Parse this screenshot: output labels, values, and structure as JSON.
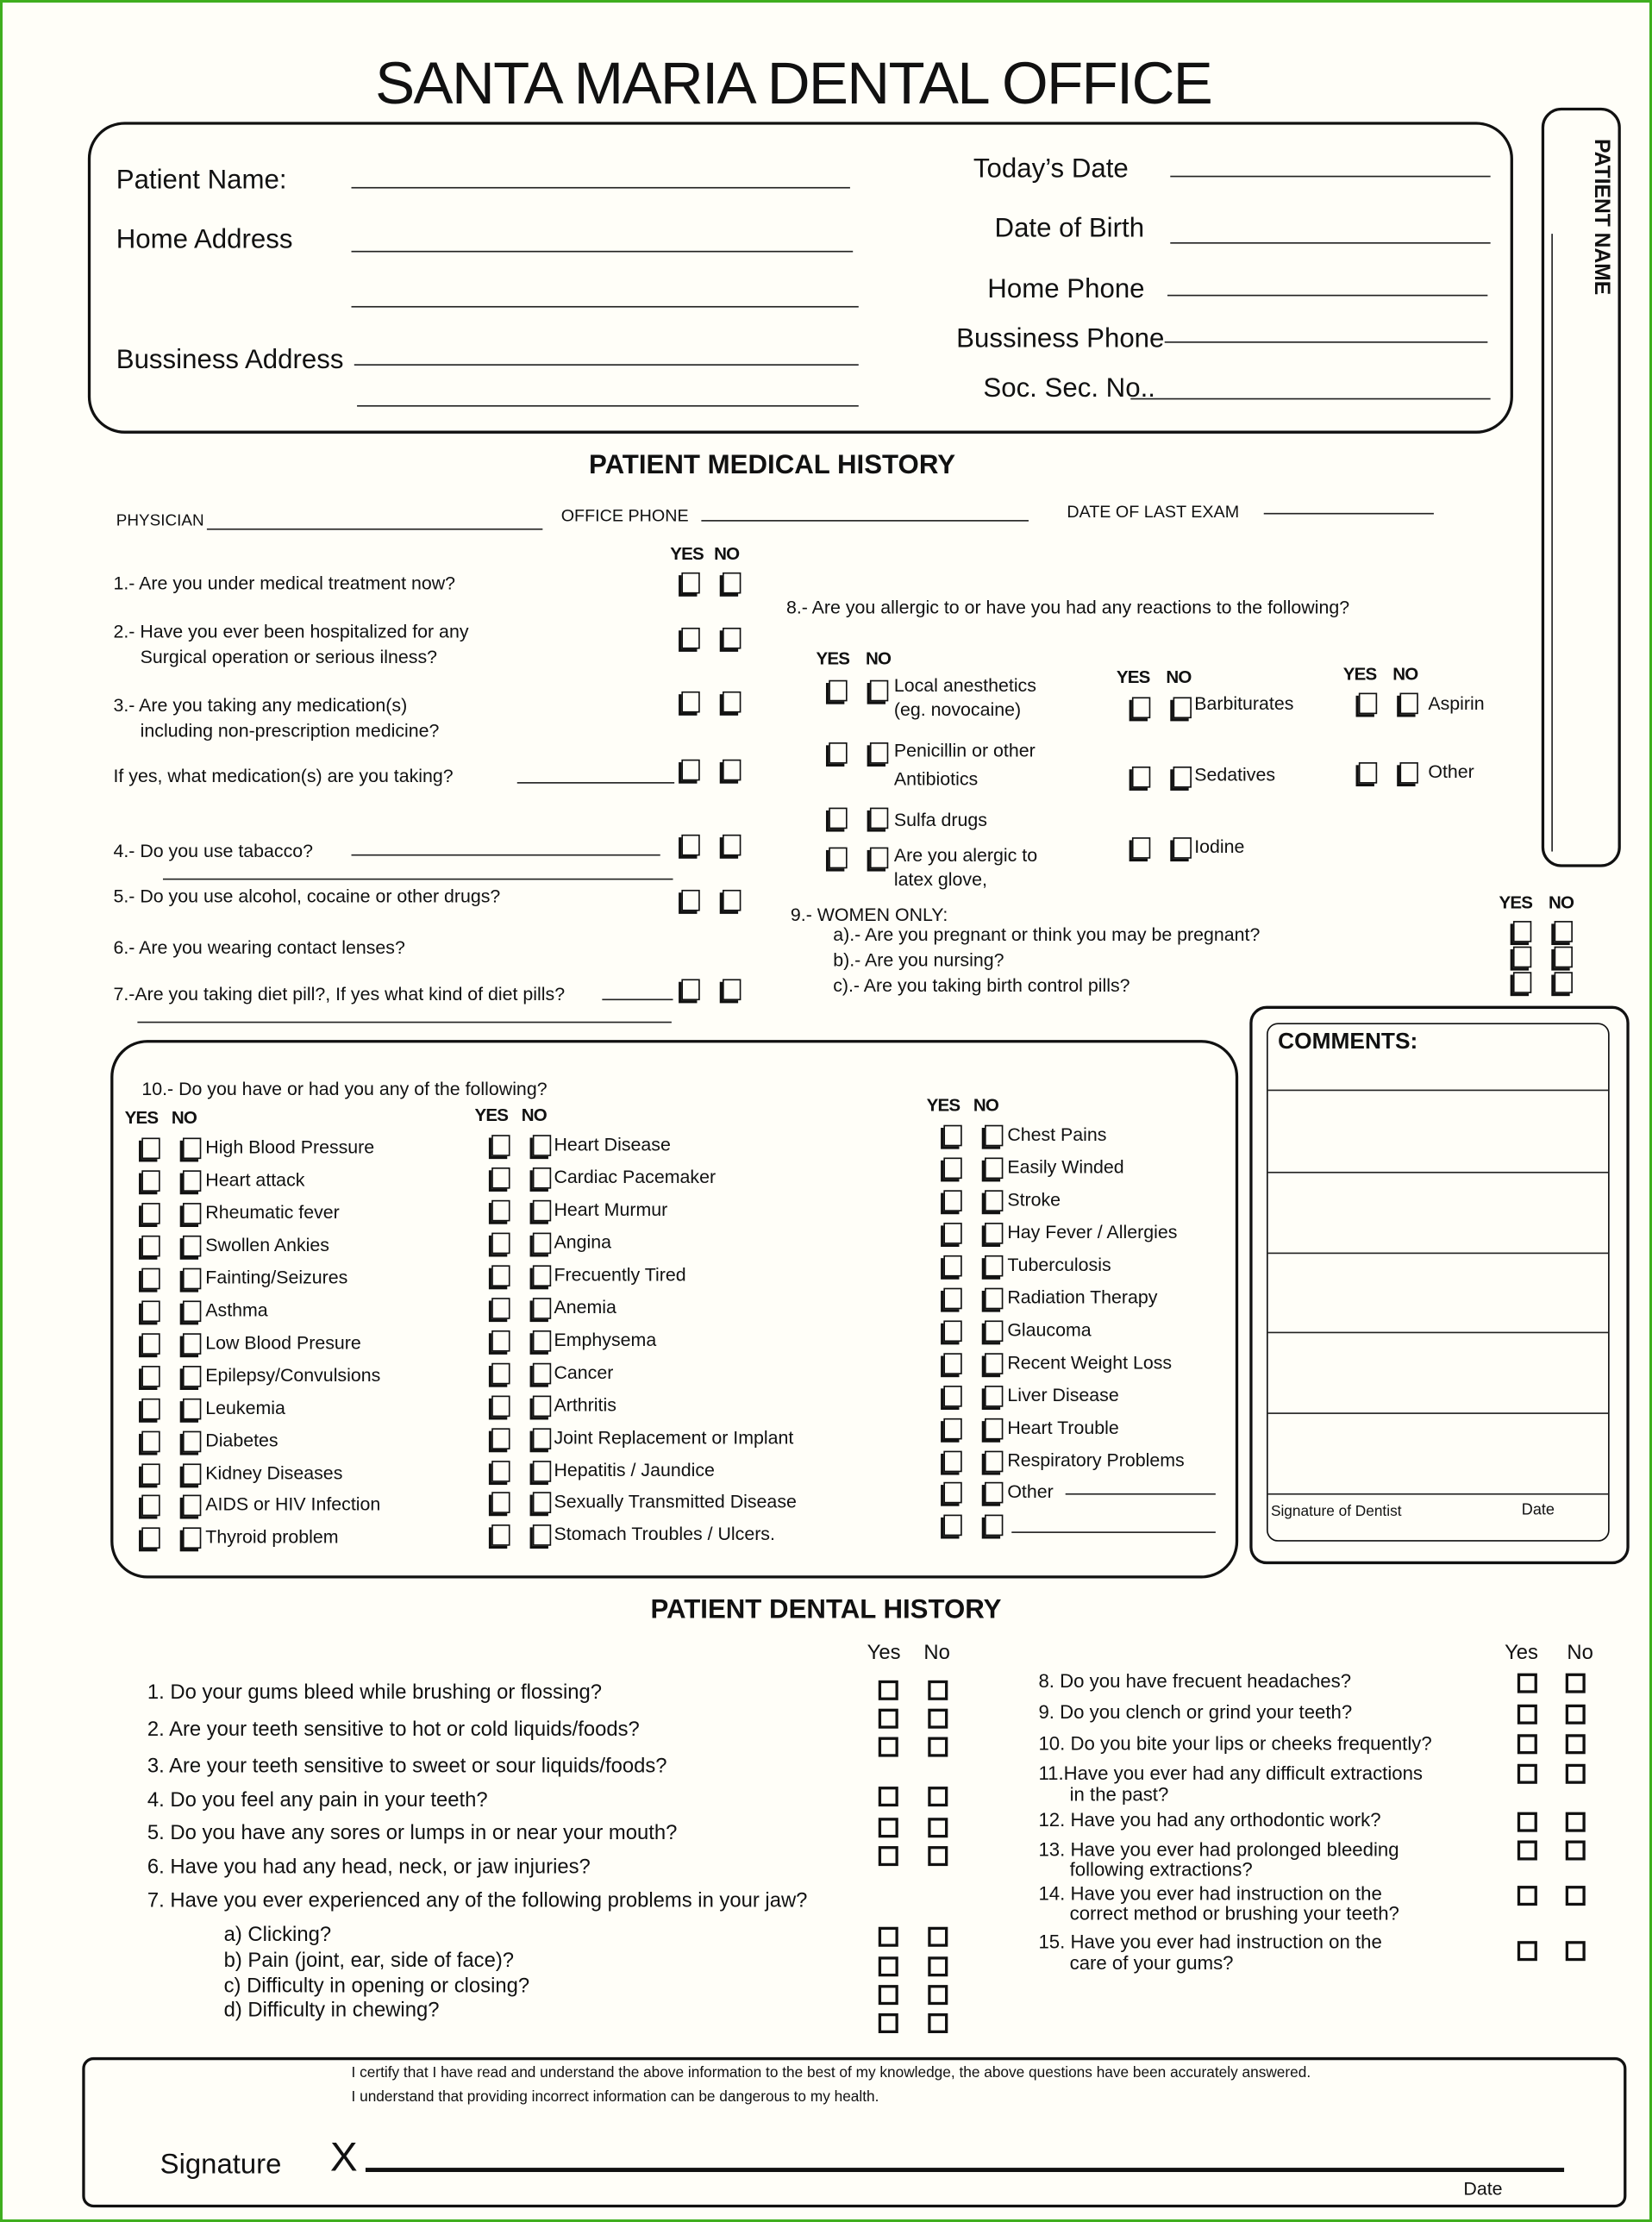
{
  "title": "SANTA MARIA DENTAL OFFICE",
  "patient_info": {
    "patient_name": "Patient Name:",
    "home_address": "Home Address",
    "business_address": "Bussiness Address",
    "todays_date": "Today’s  Date",
    "date_of_birth": "Date of Birth",
    "home_phone": "Home Phone",
    "business_phone": "Bussiness Phone",
    "soc_sec_no": "Soc. Sec. No.."
  },
  "side_tab": {
    "label": "PATIENT NAME"
  },
  "medical_history": {
    "title": "PATIENT MEDICAL HISTORY",
    "physician": "PHYSICIAN",
    "office_phone": "OFFICE PHONE",
    "last_exam": "DATE OF  LAST EXAM",
    "yes": "YES",
    "no": "NO",
    "questions": [
      {
        "lines": [
          "1.- Are you under medical treatment now?"
        ]
      },
      {
        "lines": [
          "2.- Have you ever been hospitalized for any",
          "Surgical operation or serious ilness?"
        ]
      },
      {
        "lines": [
          "3.- Are you taking any medication(s)",
          "including non-prescription medicine?"
        ]
      },
      {
        "lines": [
          "If yes, what medication(s) are you taking?"
        ]
      },
      {
        "lines": [
          "4.- Do you use tabacco?"
        ]
      },
      {
        "lines": [
          "5.- Do you use alcohol, cocaine or other drugs?"
        ]
      },
      {
        "lines": [
          "6.- Are you wearing contact lenses?"
        ]
      },
      {
        "lines": [
          "7.-Are you taking diet pill?, If yes what kind of diet pills?"
        ]
      }
    ],
    "allergies": {
      "question": "8.- Are you allergic to or have you had any reactions to the following?",
      "items": [
        {
          "lines": [
            "Local anesthetics",
            "(eg. novocaine)"
          ]
        },
        {
          "lines": [
            "Penicillin or other",
            "Antibiotics"
          ]
        },
        {
          "lines": [
            "Sulfa drugs"
          ]
        },
        {
          "lines": [
            "Are you alergic to",
            "latex glove,"
          ]
        },
        {
          "lines": [
            "Barbiturates"
          ]
        },
        {
          "lines": [
            "Sedatives"
          ]
        },
        {
          "lines": [
            "Iodine"
          ]
        },
        {
          "lines": [
            "Aspirin"
          ]
        },
        {
          "lines": [
            "Other"
          ]
        }
      ]
    },
    "women_only": {
      "title": "9.- WOMEN ONLY:",
      "items": [
        "a).- Are you pregnant or think you may be pregnant?",
        "b).- Are you nursing?",
        "c).- Are you taking birth control pills?"
      ]
    },
    "conditions": {
      "question": "10.- Do you have or had you any of the following?",
      "col1": [
        "High Blood Pressure",
        "Heart attack",
        "Rheumatic fever",
        "Swollen Ankies",
        "Fainting/Seizures",
        "Asthma",
        "Low Blood Presure",
        "Epilepsy/Convulsions",
        "Leukemia",
        "Diabetes",
        "Kidney Diseases",
        "AIDS or HIV Infection",
        "Thyroid problem"
      ],
      "col2": [
        "Heart Disease",
        "Cardiac Pacemaker",
        "Heart Murmur",
        "Angina",
        "Frecuently Tired",
        "Anemia",
        "Emphysema",
        "Cancer",
        "Arthritis",
        "Joint Replacement or Implant",
        "Hepatitis / Jaundice",
        "Sexually Transmitted Disease",
        "Stomach Troubles / Ulcers."
      ],
      "col3": [
        "Chest Pains",
        "Easily Winded",
        "Stroke",
        "Hay Fever / Allergies",
        "Tuberculosis",
        "Radiation Therapy",
        "Glaucoma",
        "Recent Weight Loss",
        "Liver Disease",
        "Heart Trouble",
        "Respiratory Problems",
        "Other",
        ""
      ]
    }
  },
  "comments": {
    "title": "COMMENTS:",
    "signature_of_dentist": "Signature of Dentist",
    "date": "Date"
  },
  "dental_history": {
    "title": "PATIENT DENTAL HISTORY",
    "yes": "Yes",
    "no": "No",
    "left": [
      {
        "lines": [
          "1. Do your gums bleed while brushing or flossing?"
        ]
      },
      {
        "lines": [
          "2. Are your teeth sensitive to hot or cold liquids/foods?"
        ]
      },
      {
        "lines": [
          "3. Are your teeth sensitive to sweet or sour liquids/foods?"
        ]
      },
      {
        "lines": [
          "4. Do you feel any pain in your teeth?"
        ]
      },
      {
        "lines": [
          "5. Do you have any sores or lumps in or near your mouth?"
        ]
      },
      {
        "lines": [
          "6. Have you had any head, neck, or jaw injuries?"
        ]
      },
      {
        "lines": [
          "7. Have you ever experienced any of the following problems in your jaw?"
        ]
      }
    ],
    "jaw": [
      "a) Clicking?",
      "b) Pain (joint, ear, side of face)?",
      "c) Difficulty in opening or closing?",
      "d) Difficulty in chewing?"
    ],
    "right": [
      {
        "lines": [
          "8. Do you have frecuent headaches?"
        ]
      },
      {
        "lines": [
          "9. Do you clench or grind your teeth?"
        ]
      },
      {
        "lines": [
          "10. Do you bite your lips or cheeks frequently?"
        ]
      },
      {
        "lines": [
          "11.Have you ever had any difficult extractions",
          "in the past?"
        ]
      },
      {
        "lines": [
          "12. Have you had any orthodontic work?"
        ]
      },
      {
        "lines": [
          "13. Have you ever had prolonged bleeding",
          "following extractions?"
        ]
      },
      {
        "lines": [
          "14. Have you ever had instruction on the",
          "correct method or brushing your teeth?"
        ]
      },
      {
        "lines": [
          "15. Have you ever had instruction on the",
          "care of your gums?"
        ]
      }
    ]
  },
  "certification": {
    "line1": "I certify that I have read and understand the above information to the best of my knowledge, the above questions have been accurately answered.",
    "line2": "I understand that providing incorrect information can be dangerous to my health.",
    "signature": "Signature",
    "x_mark": "X",
    "date": "Date"
  }
}
